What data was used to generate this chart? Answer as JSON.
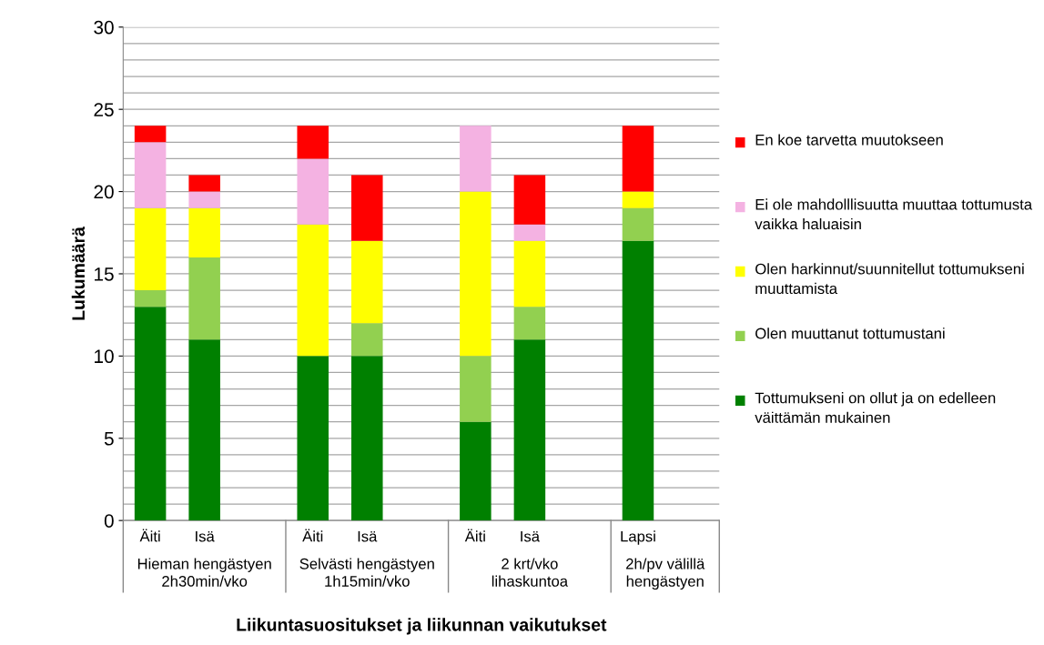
{
  "chart_data": {
    "type": "bar",
    "stacked": true,
    "ylabel": "Lukumäärä",
    "xlabel": "Liikuntasuositukset ja liikunnan vaikutukset",
    "categories": [
      "Äiti",
      "Isä",
      null,
      "Äiti",
      "Isä",
      null,
      "Äiti",
      "Isä",
      null,
      "Lapsi",
      null
    ],
    "series": [
      {
        "name": "Tottumukseni on ollut ja on edelleen väittämän mukainen",
        "color": "#008000",
        "values": [
          13,
          11,
          null,
          10,
          10,
          null,
          6,
          11,
          null,
          17,
          null
        ]
      },
      {
        "name": "Olen muuttanut tottumustani",
        "color": "#92d050",
        "values": [
          1,
          5,
          null,
          0,
          2,
          null,
          4,
          2,
          null,
          2,
          null
        ]
      },
      {
        "name": "Olen harkinnut/suunnitellut tottumukseni muuttamista",
        "color": "#ffff00",
        "values": [
          5,
          3,
          null,
          8,
          5,
          null,
          10,
          4,
          null,
          1,
          null
        ]
      },
      {
        "name": "Ei ole mahdolllisuutta muuttaa tottumusta vaikka haluaisin",
        "color": "#f4b2e2",
        "values": [
          4,
          1,
          null,
          4,
          0,
          null,
          4,
          1,
          null,
          0,
          null
        ]
      },
      {
        "name": "En koe tarvetta muutokseen",
        "color": "#ff0000",
        "values": [
          1,
          1,
          null,
          2,
          4,
          null,
          0,
          3,
          null,
          4,
          null
        ]
      }
    ],
    "ylim": [
      0,
      30
    ],
    "yticks": [
      0,
      {
        "value": 1,
        "label": null
      },
      {
        "value": 2,
        "label": null
      },
      {
        "value": 3,
        "label": null
      },
      {
        "value": 4,
        "label": null
      },
      5,
      {
        "value": 6,
        "label": null
      },
      {
        "value": 7,
        "label": null
      },
      {
        "value": 8,
        "label": null
      },
      {
        "value": 9,
        "label": null
      },
      10,
      {
        "value": 11,
        "label": null
      },
      {
        "value": 12,
        "label": null
      },
      {
        "value": 13,
        "label": null
      },
      {
        "value": 14,
        "label": null
      },
      15,
      {
        "value": 16,
        "label": null
      },
      {
        "value": 17,
        "label": null
      },
      {
        "value": 18,
        "label": null
      },
      {
        "value": 19,
        "label": null
      },
      20,
      {
        "value": 21,
        "label": null
      },
      {
        "value": 22,
        "label": null
      },
      {
        "value": 23,
        "label": null
      },
      {
        "value": 24,
        "label": null
      },
      25,
      {
        "value": 26,
        "label": null
      },
      {
        "value": 27,
        "label": null
      },
      {
        "value": 28,
        "label": null
      },
      {
        "value": 29,
        "label": null
      },
      30
    ],
    "grid": "y",
    "legend": "right",
    "annotations": [
      "Hieman hengästyen\n2h30min/vko",
      "Selvästi hengästyen\n1h15min/vko",
      "2 krt/vko\nlihaskuntoa",
      "2h/pv välillä\nhengästyen"
    ]
  }
}
